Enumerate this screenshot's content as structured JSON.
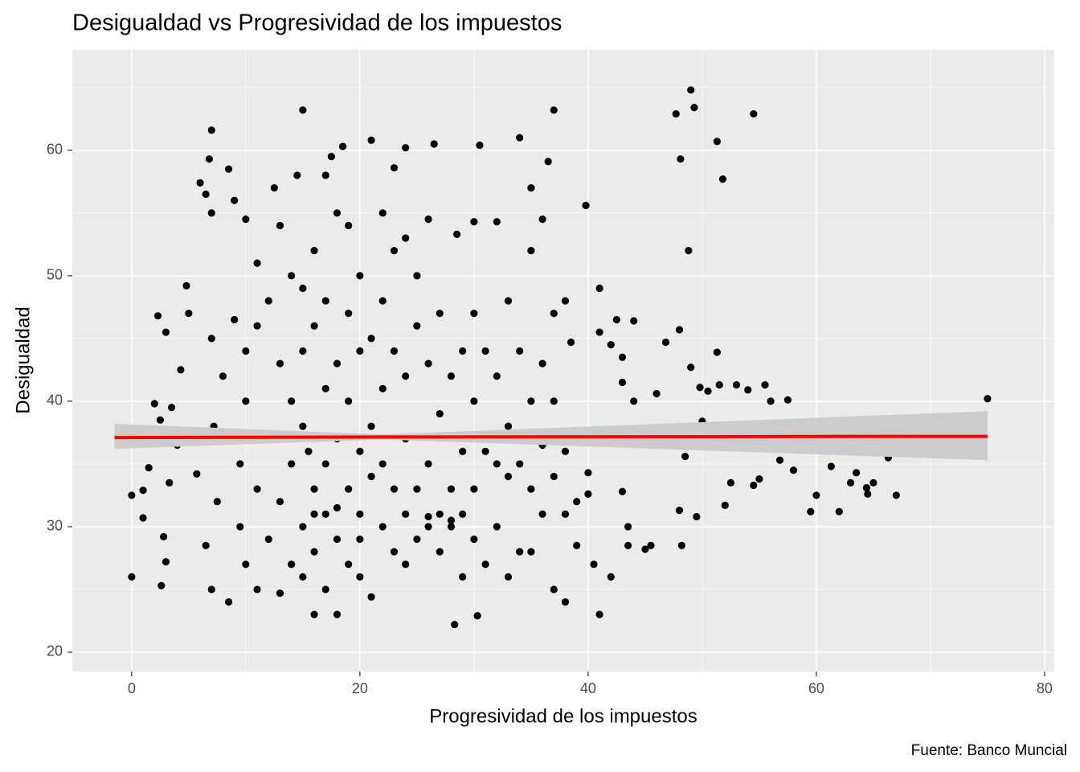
{
  "chart_data": {
    "type": "scatter",
    "title": "Desigualdad vs Progresividad de los impuestos",
    "x_label": "Progresividad de los impuestos",
    "y_label": "Desigualdad",
    "caption": "Fuente: Banco Muncial",
    "xlim": [
      -5.2,
      80.85
    ],
    "ylim": [
      18.46,
      68.0
    ],
    "xticks": [
      0,
      20,
      40,
      60,
      80
    ],
    "yticks": [
      20,
      30,
      40,
      50,
      60
    ],
    "grid": true,
    "series": [
      {
        "color": "#000000",
        "x": [
          0,
          0,
          0.3,
          1,
          1,
          1.5,
          2,
          2.3,
          2.5,
          2.6,
          2.8,
          3,
          3,
          3.3,
          3.5,
          4,
          4.3,
          4.8,
          5,
          5,
          5.7,
          6,
          6.5,
          6.8,
          7,
          7,
          7,
          7.2,
          7.5,
          6.5,
          7,
          8,
          8.5,
          8.5,
          9,
          9,
          9.5,
          9.5,
          10,
          10,
          10,
          10,
          11,
          11,
          11,
          11,
          12,
          12,
          12,
          12.5,
          13,
          13,
          13,
          13,
          14,
          14,
          14,
          14,
          14.5,
          15,
          15,
          15,
          15,
          15,
          15,
          15.5,
          16,
          16,
          16,
          16,
          16,
          17,
          17,
          17,
          17,
          17,
          17,
          17.5,
          18,
          18,
          18,
          18,
          18,
          18.5,
          19,
          19,
          19,
          19,
          19,
          20,
          20,
          20,
          20,
          20,
          21,
          21,
          21,
          21,
          21,
          22,
          22,
          22,
          22,
          22,
          23,
          23,
          23,
          23,
          23,
          24,
          24,
          24,
          24,
          24,
          24,
          25,
          25,
          25,
          25,
          26,
          26,
          26,
          26,
          26.5,
          27,
          27,
          27,
          27,
          28,
          28,
          28,
          28.3,
          28.5,
          29,
          29,
          29,
          29,
          30,
          30,
          30,
          30,
          30,
          30.3,
          30.5,
          31,
          31,
          31,
          32,
          32,
          32,
          32,
          33,
          33,
          33,
          33,
          34,
          34,
          34,
          34,
          35,
          35,
          35,
          35,
          35,
          36,
          36,
          36,
          36,
          36.5,
          37,
          37,
          37,
          37,
          37,
          38,
          38,
          38,
          38,
          38.5,
          39,
          39,
          39,
          39.8,
          40,
          40,
          40.5,
          41,
          41,
          41,
          42,
          42,
          42.5,
          43,
          43,
          43.5,
          43.5,
          44,
          45,
          45.5,
          46,
          46.8,
          47.7,
          48,
          48,
          48.1,
          48.2,
          48.8,
          48.5,
          49,
          49,
          49.3,
          49.5,
          49.8,
          50,
          50.5,
          51.3,
          51.3,
          51.5,
          51.8,
          52,
          52.5,
          53,
          54,
          54.5,
          54.5,
          55,
          55.5,
          56,
          56.8,
          57.5,
          58,
          59.5,
          60,
          61.3,
          62,
          63,
          63.5,
          64.4,
          64.5,
          65,
          66.3,
          67,
          75,
          43,
          44,
          36,
          18,
          20,
          16,
          26,
          28
        ],
        "values": [
          26,
          32.5,
          37.5,
          32.9,
          30.7,
          34.7,
          39.8,
          46.8,
          38.5,
          25.3,
          29.2,
          45.5,
          27.2,
          33.5,
          39.5,
          36.5,
          42.5,
          49.2,
          47,
          37,
          34.2,
          57.4,
          56.5,
          59.3,
          61.6,
          55,
          45,
          38,
          32,
          28.5,
          25,
          42,
          58.5,
          24,
          46.5,
          56,
          35,
          30,
          54.5,
          44,
          40,
          27,
          51,
          46,
          33,
          25,
          48,
          37,
          29,
          57,
          54,
          43,
          32,
          24.7,
          50,
          40,
          35,
          27,
          58,
          63.2,
          49,
          44,
          38,
          30,
          26,
          36,
          52,
          46,
          33,
          28,
          23,
          58,
          48,
          41,
          35,
          31,
          25,
          59.5,
          55,
          43,
          37,
          29,
          23,
          60.3,
          54,
          47,
          40,
          33,
          27,
          50,
          44,
          36,
          31,
          26,
          60.8,
          45,
          38,
          34,
          24.4,
          55,
          48,
          41,
          35,
          30,
          58.6,
          52,
          44,
          33,
          28,
          60.2,
          53,
          42,
          37,
          31,
          27,
          50,
          46,
          33,
          29,
          54.5,
          43,
          35,
          30,
          60.5,
          47,
          39,
          31,
          28,
          42,
          33,
          30,
          22.2,
          53.3,
          44,
          36,
          31,
          26,
          54.3,
          47,
          40,
          33,
          29,
          22.9,
          60.4,
          44,
          36,
          27,
          54.3,
          42,
          35,
          30,
          48,
          38,
          34,
          26,
          61,
          44,
          35,
          28,
          57,
          52,
          40,
          33,
          28,
          54.5,
          43,
          37,
          31,
          59.1,
          63.2,
          47,
          40,
          34,
          25,
          48,
          36,
          31,
          24,
          44.7,
          37,
          32,
          28.5,
          55.6,
          34.3,
          32.6,
          27,
          49,
          45.5,
          23,
          44.5,
          26,
          46.5,
          43.5,
          41.5,
          30,
          28.5,
          46.4,
          28.2,
          28.5,
          40.6,
          44.7,
          62.9,
          45.7,
          31.3,
          59.3,
          28.5,
          52,
          35.6,
          64.8,
          42.7,
          63.4,
          30.8,
          41.1,
          38.4,
          40.8,
          60.7,
          43.9,
          41.3,
          57.7,
          31.7,
          33.5,
          41.3,
          40.9,
          62.9,
          33.3,
          33.8,
          41.3,
          40,
          35.3,
          40.1,
          34.5,
          31.2,
          32.5,
          34.8,
          31.2,
          33.5,
          34.3,
          33.1,
          32.6,
          33.5,
          35.5,
          32.5,
          40.2,
          32.8,
          40,
          36.5,
          31.5,
          29,
          31,
          30.8,
          30.5
        ]
      }
    ],
    "fit": {
      "color": "#ff0000",
      "ribbon_color": "#cccccc",
      "x": [
        -1.5,
        22,
        75
      ],
      "values": [
        37.1,
        37.15,
        37.2
      ],
      "lower": [
        36.2,
        36.95,
        35.3
      ],
      "upper": [
        38.2,
        37.35,
        39.2
      ]
    }
  }
}
